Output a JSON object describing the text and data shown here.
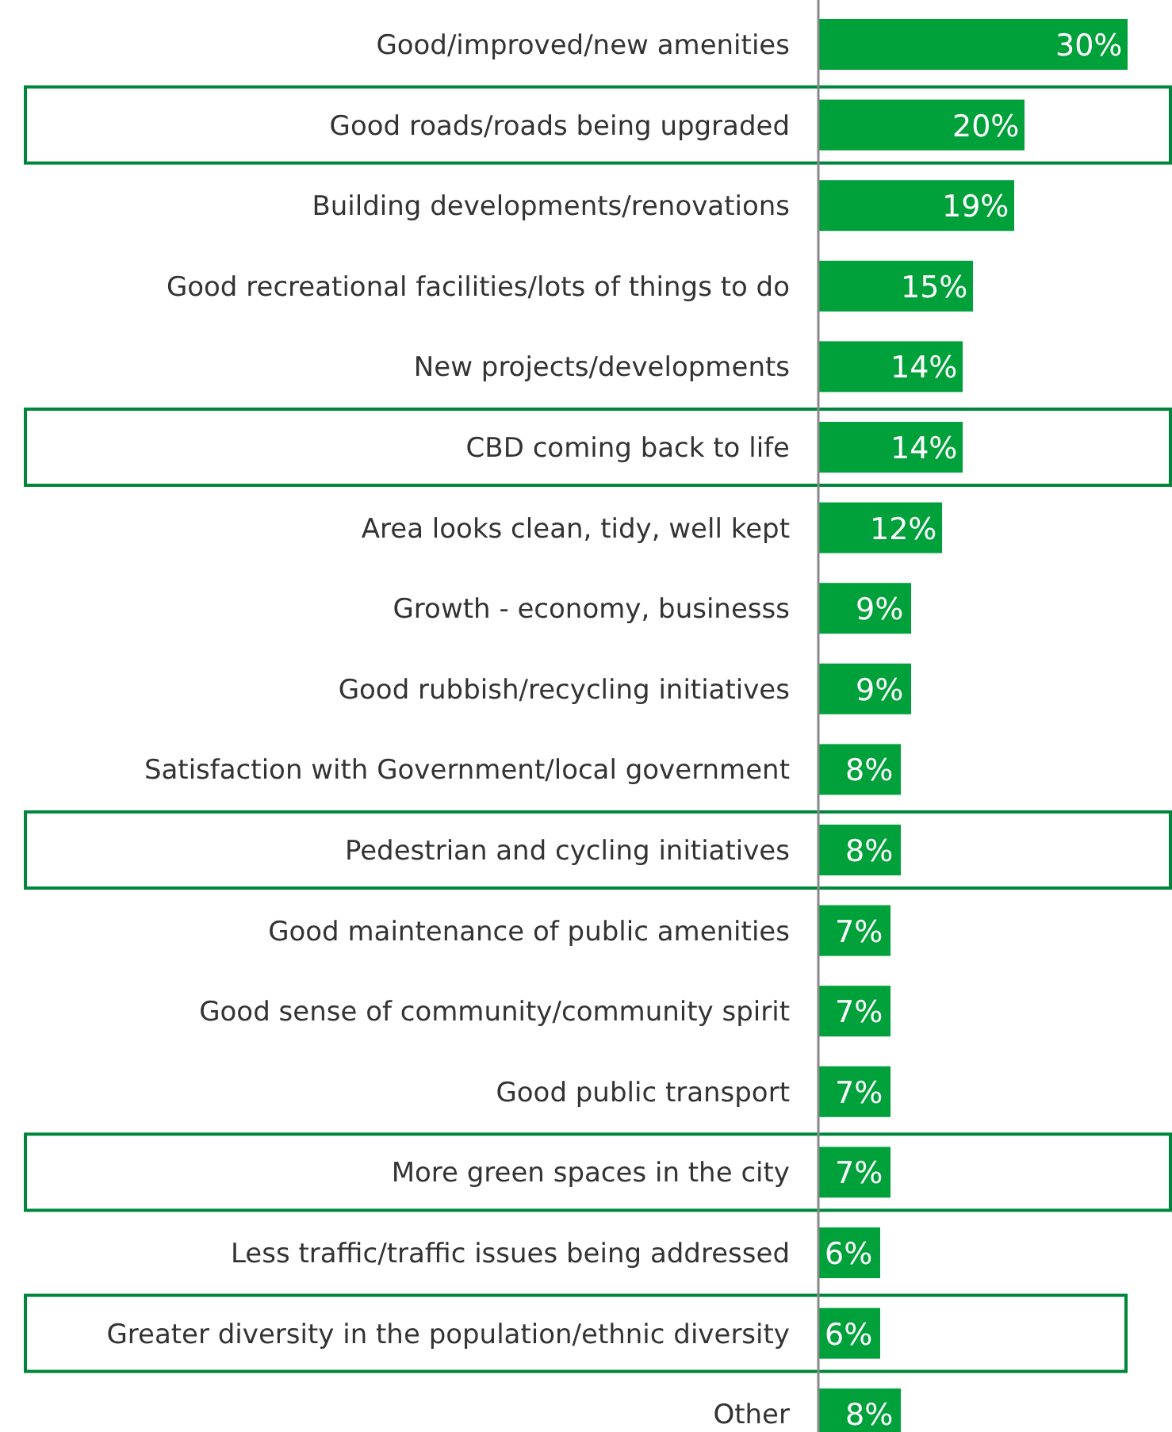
{
  "chart_data": {
    "type": "bar",
    "orientation": "horizontal",
    "categories": [
      "Good/improved/new amenities",
      "Good roads/roads being upgraded",
      "Building developments/renovations",
      "Good recreational facilities/lots of things to do",
      "New projects/developments",
      "CBD coming back to life",
      "Area looks clean, tidy, well kept ",
      "Growth - economy, businesss",
      "Good rubbish/recycling initiatives",
      "Satisfaction with Government/local government",
      "Pedestrian and cycling initiatives",
      "Good maintenance of public amenities",
      "Good sense of community/community spirit",
      "Good public transport",
      "More green spaces in the city",
      "Less traffic/traffic issues being addressed",
      "Greater diversity in the population/ethnic diversity",
      "Other"
    ],
    "values": [
      30,
      20,
      19,
      15,
      14,
      14,
      12,
      9,
      9,
      8,
      8,
      7,
      7,
      7,
      7,
      6,
      6,
      8
    ],
    "value_labels": [
      "30%",
      "20%",
      "19%",
      "15%",
      "14%",
      "14%",
      "12%",
      "9%",
      "9%",
      "8%",
      "8%",
      "7%",
      "7%",
      "7%",
      "7%",
      "6%",
      "6%",
      "8%"
    ],
    "color": "#00a13a"
  }
}
